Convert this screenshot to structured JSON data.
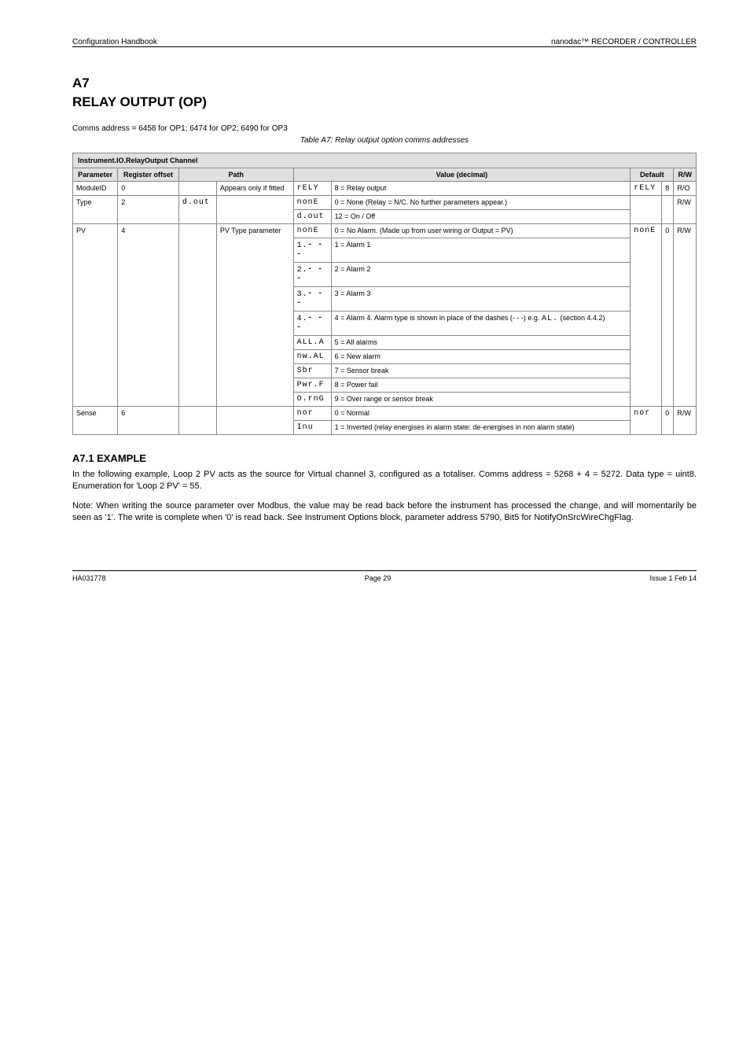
{
  "header": {
    "left": "Configuration Handbook",
    "right": "nanodac™ RECORDER / CONTROLLER"
  },
  "section": {
    "num": "A7",
    "title": "RELAY OUTPUT (OP)",
    "address_label": "Comms address = 6458 for OP1; 6474 for OP2; 6490 for OP3",
    "table_caption": "Table A7: Relay output option comms addresses"
  },
  "columns": [
    "Parameter",
    "Register offset",
    "Path",
    "Value (decimal)",
    "Default",
    "R/W"
  ],
  "banner": "Instrument.IO.RelayOutput Channel",
  "rows": [
    {
      "param": "ModuleID",
      "offset": "0",
      "path_seg": "",
      "path_plain": "Appears only if fitted",
      "vals": [
        [
          "rELY",
          "8 = Relay output"
        ]
      ],
      "default_seg": "rELY",
      "default_plain": "8",
      "rw": "R/O"
    },
    {
      "param": "Type",
      "offset": "2",
      "path_seg": "d.out",
      "path_plain": "",
      "vals": [
        [
          "nonE",
          "0 = None (Relay = N/C. No further parameters appear.)"
        ],
        [
          "d.out",
          "12 = On / Off"
        ]
      ],
      "default_seg": "",
      "default_plain": "",
      "rw": "R/W"
    },
    {
      "param": "PV",
      "offset": "4",
      "path_seg": "",
      "path_plain": "PV Type parameter",
      "vals": [
        [
          "nonE",
          "0 = No Alarm. (Made up from user wiring or Output = PV)"
        ],
        [
          "1.⁃ ⁃ ⁃",
          "1 = Alarm 1",
          true
        ],
        [
          "2.⁃ ⁃ ⁃",
          "2 = Alarm 2",
          true
        ],
        [
          "3.⁃ ⁃ ⁃",
          "3 = Alarm 3",
          true
        ],
        [
          "4.⁃ ⁃ ⁃",
          "4 = Alarm 4. Alarm type is shown in place of the dashes (- - -) e.g. AL. (section 4.4.2)",
          true
        ],
        [
          "ALL.A",
          "5 = All alarms"
        ],
        [
          "nw.AL",
          "6 = New alarm"
        ],
        [
          "Sbr",
          "7 = Sensor break"
        ],
        [
          "Pwr.F",
          "8 = Power fail"
        ],
        [
          "O.rnG",
          "9 = Over range or sensor break"
        ]
      ],
      "default_seg": "nonE",
      "default_plain": "0",
      "rw": "R/W"
    },
    {
      "param": "Sense",
      "offset": "6",
      "path_seg": "",
      "path_plain": "",
      "vals": [
        [
          "nor",
          "0 = Normal"
        ],
        [
          "Inu",
          "1 = Inverted (relay energises in alarm state: de-energises in non alarm state)"
        ]
      ],
      "default_seg": "nor",
      "default_plain": "0",
      "rw": "R/W"
    }
  ],
  "note_segment": "AL.",
  "sub": {
    "num": "A7.1",
    "title": "EXAMPLE",
    "paras": [
      "In the following example, Loop 2 PV acts as the source for Virtual channel 3, configured as a totaliser. Comms address = 5268 + 4 = 5272. Data type = uint8. Enumeration for 'Loop 2 PV' = 55.",
      "Note: When writing the source parameter over Modbus, the value may be read back before the instrument has processed the change, and will momentarily be seen as '1'. The write is complete when '0' is read back. See Instrument Options block, parameter address 5790, Bit5 for NotifyOnSrcWireChgFlag."
    ]
  },
  "footer": {
    "left": "HA031778",
    "center": "Page 29",
    "right": "Issue 1 Feb 14"
  }
}
